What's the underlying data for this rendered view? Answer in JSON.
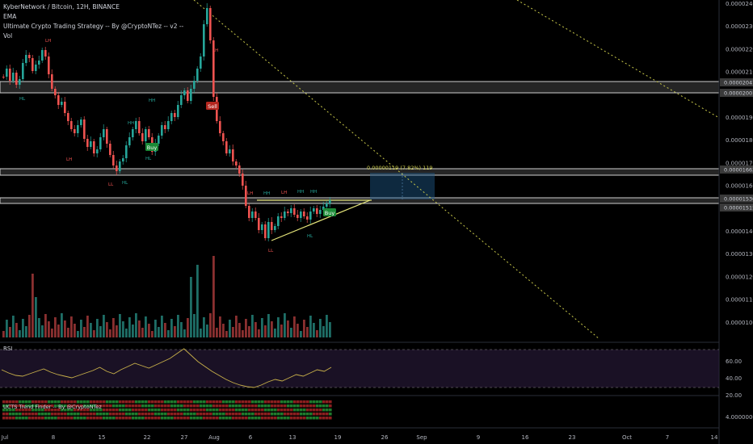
{
  "legend": {
    "title": "KyberNetwork / Bitcoin, 12H, BINANCE",
    "ema": "EMA",
    "strategy": "Ultimate Crypto Trading Strategy -- By @CryptoNTez -- v2 --",
    "vol": "Vol"
  },
  "rsi": {
    "label": "RSI",
    "ticks": [
      "60.00",
      "40.00",
      "20.00"
    ],
    "values": [
      52,
      48,
      45,
      44,
      47,
      50,
      53,
      49,
      46,
      44,
      42,
      45,
      48,
      51,
      55,
      50,
      47,
      52,
      56,
      60,
      57,
      54,
      58,
      62,
      66,
      72,
      78,
      70,
      62,
      56,
      50,
      45,
      40,
      36,
      33,
      31,
      30,
      33,
      37,
      40,
      38,
      42,
      46,
      44,
      48,
      52,
      50,
      55
    ]
  },
  "trend_finder": {
    "label": "UCTS Trend Finder -- By @CryptoNTez",
    "tick": "4.00000000"
  },
  "price_axis": [
    "0.00002400",
    "0.00002300",
    "0.00002200",
    "0.00002100",
    "0.00002000",
    "0.00001900",
    "0.00001800",
    "0.00001700",
    "0.00001600",
    "0.00001500",
    "0.00001400",
    "0.00001300",
    "0.00001200",
    "0.00001100",
    "0.00001000"
  ],
  "price_tags": [
    {
      "label": "0.00002047",
      "bg": "#3a3a3a"
    },
    {
      "label": "0.00002001",
      "bg": "#3a3a3a"
    },
    {
      "label": "0.00001662",
      "bg": "#3a3a3a"
    },
    {
      "label": "0.00001530",
      "bg": "#3a3a3a"
    },
    {
      "label": "0.00001515",
      "bg": "#3a3a3a"
    }
  ],
  "time_axis": [
    "Jul",
    "8",
    "15",
    "22",
    "27",
    "Aug",
    "6",
    "13",
    "19",
    "26",
    "Sep",
    "9",
    "16",
    "23",
    "Oct",
    "7",
    "14"
  ],
  "measure_label": "0.00000119 (7.82%) 119",
  "signals": [
    {
      "label": "Buy",
      "color": "#1b8a36"
    },
    {
      "label": "Sell",
      "color": "#b3261e"
    },
    {
      "label": "Buy",
      "color": "#1b8a36"
    }
  ],
  "markers": [
    "HL",
    "LH",
    "LH",
    "HH",
    "HL",
    "HH",
    "LL",
    "HL",
    "LH",
    "HH",
    "LH",
    "HH",
    "HH",
    "HL",
    "LL",
    "LH"
  ],
  "colors": {
    "up": "#26a69a",
    "down": "#ef5350",
    "vol_up": "#1e6e66",
    "vol_down": "#8a3030",
    "rsi": "#c8b04a",
    "trend": "#c9c94a"
  }
}
